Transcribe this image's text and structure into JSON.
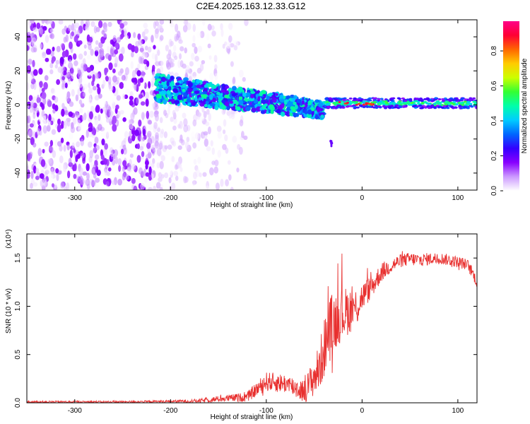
{
  "title": "C2E4.2025.163.12.33.G12",
  "chart_data": [
    {
      "type": "heatmap",
      "xlabel": "Height of straight line (km)",
      "ylabel": "Frequency (Hz)",
      "xlim": [
        -350,
        120
      ],
      "ylim": [
        -50,
        50
      ],
      "xticks": [
        -300,
        -200,
        -100,
        0,
        100
      ],
      "yticks": [
        -40,
        -20,
        0,
        20,
        40
      ],
      "colorbar": {
        "label": "Normalized spectral amplitude",
        "range": [
          0.0,
          0.97
        ],
        "ticks": [
          0.0,
          0.2,
          0.4,
          0.6,
          0.8
        ],
        "colormap": [
          "#ffffff",
          "#cc99ff",
          "#8800ff",
          "#3300ff",
          "#0066ff",
          "#00ccff",
          "#00ffaa",
          "#33ff33",
          "#ccff00",
          "#ffcc00",
          "#ff6600",
          "#ff0033",
          "#ff0088"
        ]
      },
      "regions": [
        {
          "name": "noise",
          "x": [
            -350,
            -120
          ],
          "freq_center": 0,
          "freq_halfwidth": 50,
          "amplitude": 0.15
        },
        {
          "name": "signal-broad",
          "x": [
            -215,
            -40
          ],
          "freq_center_start": 10,
          "freq_center_end": -3,
          "freq_halfwidth": 8,
          "amplitude": 0.35
        },
        {
          "name": "signal-narrow",
          "x": [
            -40,
            120
          ],
          "freq_center": 1,
          "freq_halfwidth": 3,
          "amplitude": 0.55
        },
        {
          "name": "outlier",
          "x": [
            -34,
            -31
          ],
          "freq_center": -23,
          "freq_halfwidth": 2,
          "amplitude": 0.2
        }
      ]
    },
    {
      "type": "line",
      "xlabel": "Height of straight line (km)",
      "ylabel": "SNR (10 * v/v)",
      "y_multiplier": "(x10⁴)",
      "xlim": [
        -350,
        120
      ],
      "ylim": [
        0.0,
        1.75
      ],
      "xticks": [
        -300,
        -200,
        -100,
        0,
        100
      ],
      "yticks": [
        0.0,
        0.5,
        1.0,
        1.5
      ],
      "series": [
        {
          "color": "#e8302f",
          "x": [
            -350,
            -300,
            -250,
            -200,
            -170,
            -150,
            -120,
            -100,
            -80,
            -60,
            -45,
            -35,
            -25,
            -15,
            -5,
            0,
            10,
            20,
            30,
            40,
            50,
            60,
            80,
            100,
            110,
            115,
            120
          ],
          "y": [
            0.01,
            0.01,
            0.01,
            0.015,
            0.02,
            0.04,
            0.06,
            0.22,
            0.2,
            0.12,
            0.35,
            0.75,
            0.9,
            0.95,
            1.0,
            1.1,
            1.2,
            1.35,
            1.42,
            1.47,
            1.49,
            1.48,
            1.5,
            1.46,
            1.43,
            1.35,
            1.25
          ],
          "noise": [
            0.01,
            0.01,
            0.01,
            0.012,
            0.02,
            0.03,
            0.05,
            0.1,
            0.1,
            0.12,
            0.25,
            0.35,
            0.3,
            0.25,
            0.2,
            0.15,
            0.12,
            0.1,
            0.08,
            0.07,
            0.07,
            0.07,
            0.06,
            0.06,
            0.06,
            0.06,
            0.06
          ]
        }
      ]
    }
  ]
}
